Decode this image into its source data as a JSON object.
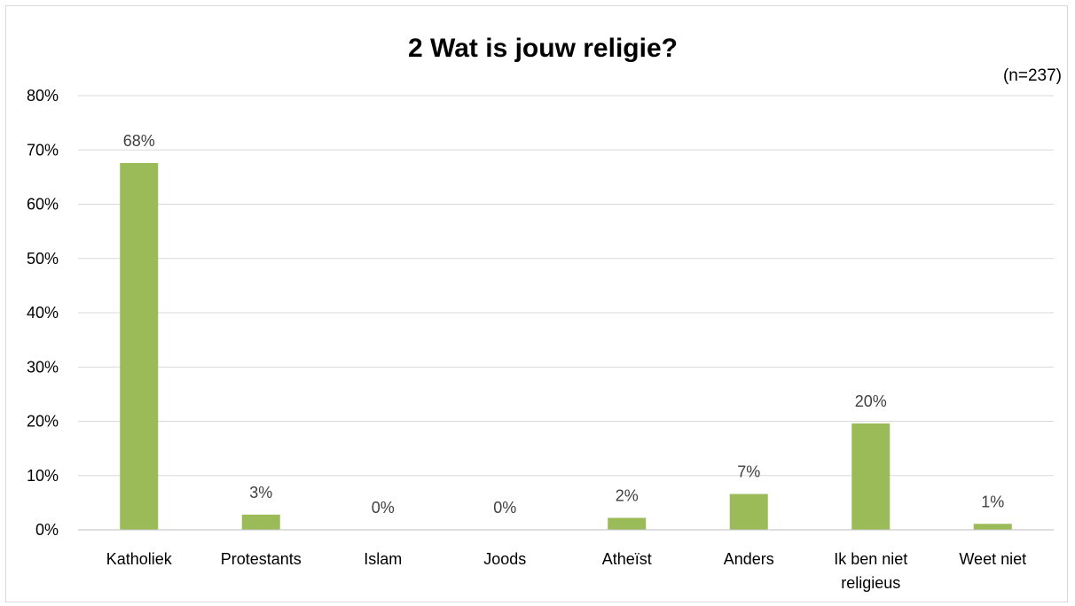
{
  "chart_data": {
    "type": "bar",
    "title": "2 Wat is jouw religie?",
    "note": "(n=237)",
    "categories": [
      [
        "Katholiek"
      ],
      [
        "Protestants"
      ],
      [
        "Islam"
      ],
      [
        "Joods"
      ],
      [
        "Atheïst"
      ],
      [
        "Anders"
      ],
      [
        "Ik ben niet",
        "religieus"
      ],
      [
        "Weet niet"
      ]
    ],
    "values": [
      0.676,
      0.028,
      0.0,
      0.0,
      0.022,
      0.066,
      0.196,
      0.011
    ],
    "data_labels": [
      "68%",
      "3%",
      "0%",
      "0%",
      "2%",
      "7%",
      "20%",
      "1%"
    ],
    "yticks": [
      "0%",
      "10%",
      "20%",
      "30%",
      "40%",
      "50%",
      "60%",
      "70%",
      "80%"
    ],
    "ylim": [
      0,
      0.8
    ],
    "grid": true,
    "legend": "none",
    "colors": {
      "bar": "#9bbb59",
      "grid": "#d9d9d9",
      "axis": "#bfbfbf",
      "label": "#404040"
    }
  }
}
